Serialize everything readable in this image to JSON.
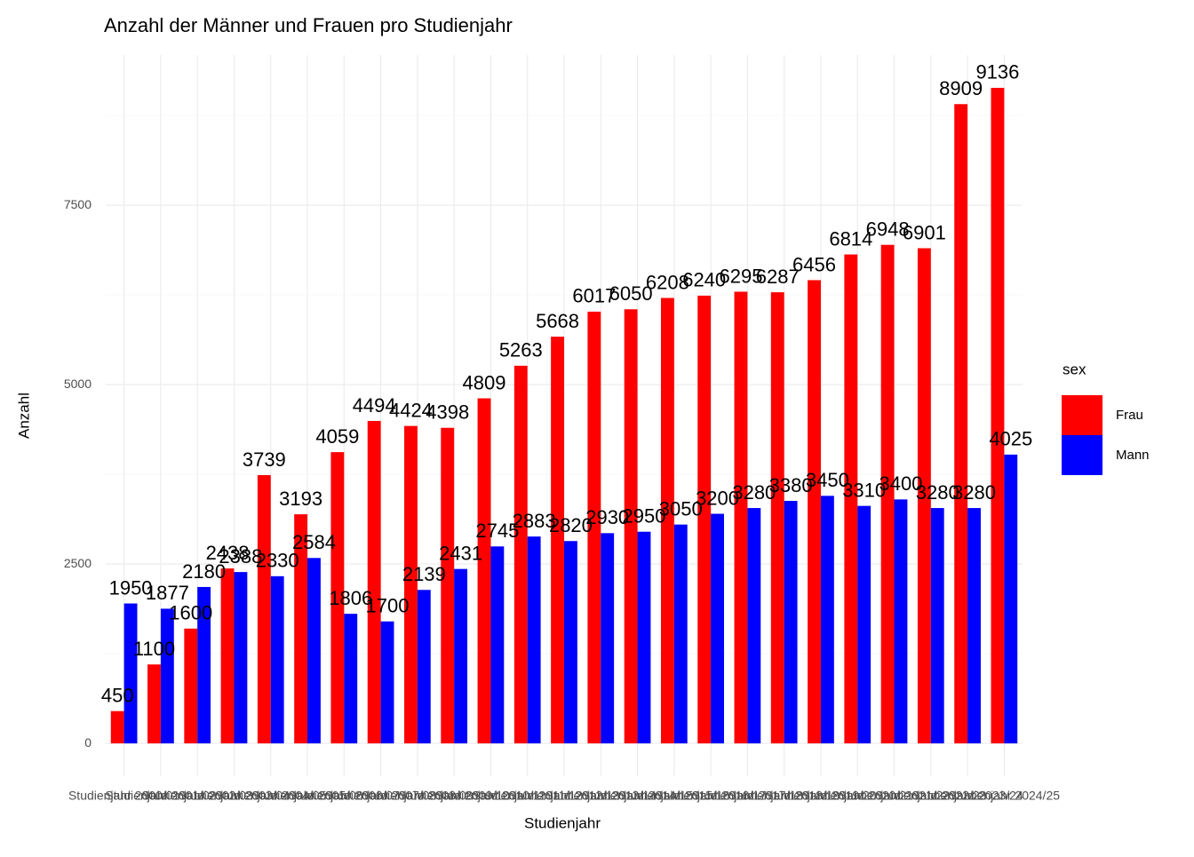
{
  "chart_data": {
    "type": "bar",
    "title": "Anzahl der Männer und Frauen pro Studienjahr",
    "x_label": "Studienjahr",
    "y_label": "Anzahl",
    "legend_title": "sex",
    "legend_position": "right",
    "categories": [
      "Studienjahr 2000/01",
      "Studienjahr 2001/02",
      "Studienjahr 2002/03",
      "Studienjahr 2003/04",
      "Studienjahr 2004/05",
      "Studienjahr 2005/06",
      "Studienjahr 2006/07",
      "Studienjahr 2007/08",
      "Studienjahr 2008/09",
      "Studienjahr 2009/10",
      "Studienjahr 2010/11",
      "Studienjahr 2011/12",
      "Studienjahr 2012/13",
      "Studienjahr 2013/14",
      "Studienjahr 2014/15",
      "Studienjahr 2015/16",
      "Studienjahr 2016/17",
      "Studienjahr 2017/18",
      "Studienjahr 2018/19",
      "Studienjahr 2019/20",
      "Studienjahr 2020/21",
      "Studienjahr 2021/22",
      "Studienjahr 2022/23",
      "Studienjahr 2023/24",
      "Studienjahr 2024/25"
    ],
    "series": [
      {
        "name": "Frau",
        "color": "#ff0000",
        "values": [
          450,
          1100,
          1600,
          2438,
          3739,
          3193,
          4059,
          4494,
          4424,
          4398,
          4809,
          5263,
          5668,
          6017,
          6050,
          6208,
          6240,
          6295,
          6287,
          6456,
          6814,
          6948,
          6901,
          8909,
          9136
        ]
      },
      {
        "name": "Mann",
        "color": "#0000ff",
        "values": [
          1950,
          1877,
          2180,
          2388,
          2330,
          2584,
          1806,
          1700,
          2139,
          2431,
          2745,
          2883,
          2820,
          2930,
          2950,
          3050,
          3200,
          3280,
          3380,
          3450,
          3310,
          3400,
          3280,
          3280,
          4025
        ]
      }
    ],
    "ylim": [
      -457,
      9593
    ],
    "yticks": [
      0,
      2500,
      5000,
      7500
    ],
    "grid": true
  }
}
